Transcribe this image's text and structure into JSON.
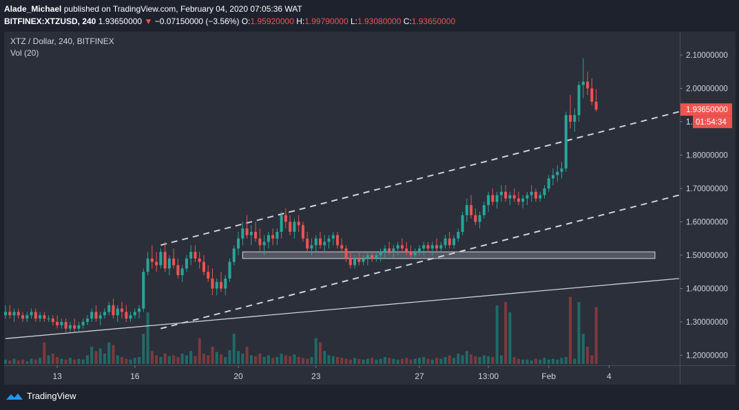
{
  "header": {
    "publisher": "Alade_Michael",
    "published_text": "published on TradingView.com, February 04, 2020 07:05:36 WAT",
    "symbol": "BITFINEX:XTZUSD, 240",
    "last": "1.93650000",
    "change": "−0.07150000 (−3.56%)",
    "o_label": "O:",
    "o": "1.95920000",
    "h_label": "H:",
    "h": "1.99790000",
    "l_label": "L:",
    "l": "1.93080000",
    "c_label": "C:",
    "c": "1.93650000"
  },
  "legend": {
    "title": "XTZ / Dollar, 240, BITFINEX",
    "vol": "Vol (20)"
  },
  "price_tag": {
    "price": "1.93650000",
    "countdown": "01:54:34",
    "partial": "1.",
    "color": "#ef5350"
  },
  "footer": {
    "brand": "TradingView"
  },
  "colors": {
    "up": "#26a69a",
    "down": "#ef5350",
    "vol_up": "#1f6b68",
    "vol_down": "#7e3a3d",
    "trendline": "#d1d4dc",
    "support_zone": "#b2b5be"
  },
  "chart_data": {
    "type": "candlestick",
    "title": "XTZ / Dollar, 240, BITFINEX",
    "y_ticks": [
      "1.20000000",
      "1.30000000",
      "1.40000000",
      "1.50000000",
      "1.60000000",
      "1.70000000",
      "1.80000000",
      "1.90000000",
      "2.00000000",
      "2.10000000"
    ],
    "y_tick_values": [
      1.2,
      1.3,
      1.4,
      1.5,
      1.6,
      1.7,
      1.8,
      1.9,
      2.0,
      2.1
    ],
    "x_ticks": [
      "13",
      "16",
      "20",
      "23",
      "27",
      "13:00",
      "Feb",
      "4"
    ],
    "x_tick_index": [
      12,
      30,
      54,
      72,
      96,
      112,
      126,
      140
    ],
    "ylim": [
      1.17,
      2.17
    ],
    "candles": [
      [
        1.32,
        1.35,
        1.31,
        1.33
      ],
      [
        1.33,
        1.35,
        1.31,
        1.32
      ],
      [
        1.32,
        1.34,
        1.3,
        1.33
      ],
      [
        1.33,
        1.34,
        1.31,
        1.32
      ],
      [
        1.32,
        1.33,
        1.3,
        1.31
      ],
      [
        1.31,
        1.33,
        1.3,
        1.32
      ],
      [
        1.32,
        1.34,
        1.31,
        1.33
      ],
      [
        1.33,
        1.34,
        1.3,
        1.31
      ],
      [
        1.31,
        1.33,
        1.3,
        1.32
      ],
      [
        1.32,
        1.33,
        1.3,
        1.31
      ],
      [
        1.31,
        1.32,
        1.3,
        1.31
      ],
      [
        1.31,
        1.32,
        1.29,
        1.3
      ],
      [
        1.3,
        1.32,
        1.28,
        1.29
      ],
      [
        1.29,
        1.31,
        1.28,
        1.3
      ],
      [
        1.3,
        1.31,
        1.27,
        1.28
      ],
      [
        1.28,
        1.3,
        1.27,
        1.29
      ],
      [
        1.29,
        1.31,
        1.27,
        1.28
      ],
      [
        1.28,
        1.3,
        1.27,
        1.29
      ],
      [
        1.29,
        1.31,
        1.28,
        1.3
      ],
      [
        1.3,
        1.32,
        1.29,
        1.31
      ],
      [
        1.31,
        1.34,
        1.3,
        1.33
      ],
      [
        1.33,
        1.35,
        1.3,
        1.31
      ],
      [
        1.31,
        1.33,
        1.29,
        1.32
      ],
      [
        1.32,
        1.34,
        1.31,
        1.33
      ],
      [
        1.33,
        1.36,
        1.32,
        1.35
      ],
      [
        1.35,
        1.37,
        1.31,
        1.32
      ],
      [
        1.32,
        1.35,
        1.3,
        1.34
      ],
      [
        1.34,
        1.36,
        1.31,
        1.33
      ],
      [
        1.33,
        1.35,
        1.3,
        1.31
      ],
      [
        1.31,
        1.33,
        1.3,
        1.32
      ],
      [
        1.32,
        1.34,
        1.31,
        1.33
      ],
      [
        1.33,
        1.35,
        1.31,
        1.34
      ],
      [
        1.34,
        1.46,
        1.33,
        1.45
      ],
      [
        1.45,
        1.51,
        1.44,
        1.49
      ],
      [
        1.49,
        1.53,
        1.46,
        1.48
      ],
      [
        1.48,
        1.51,
        1.45,
        1.47
      ],
      [
        1.47,
        1.52,
        1.46,
        1.51
      ],
      [
        1.51,
        1.54,
        1.45,
        1.46
      ],
      [
        1.46,
        1.5,
        1.44,
        1.49
      ],
      [
        1.49,
        1.52,
        1.46,
        1.47
      ],
      [
        1.47,
        1.49,
        1.43,
        1.44
      ],
      [
        1.44,
        1.47,
        1.42,
        1.46
      ],
      [
        1.46,
        1.5,
        1.45,
        1.49
      ],
      [
        1.49,
        1.53,
        1.47,
        1.51
      ],
      [
        1.51,
        1.53,
        1.48,
        1.49
      ],
      [
        1.49,
        1.51,
        1.46,
        1.48
      ],
      [
        1.48,
        1.5,
        1.44,
        1.45
      ],
      [
        1.45,
        1.47,
        1.42,
        1.43
      ],
      [
        1.43,
        1.46,
        1.38,
        1.4
      ],
      [
        1.4,
        1.43,
        1.38,
        1.42
      ],
      [
        1.42,
        1.45,
        1.39,
        1.4
      ],
      [
        1.4,
        1.44,
        1.38,
        1.43
      ],
      [
        1.43,
        1.49,
        1.42,
        1.48
      ],
      [
        1.48,
        1.53,
        1.47,
        1.52
      ],
      [
        1.52,
        1.57,
        1.5,
        1.55
      ],
      [
        1.55,
        1.6,
        1.53,
        1.58
      ],
      [
        1.58,
        1.62,
        1.55,
        1.56
      ],
      [
        1.56,
        1.59,
        1.53,
        1.57
      ],
      [
        1.57,
        1.6,
        1.54,
        1.55
      ],
      [
        1.55,
        1.58,
        1.51,
        1.53
      ],
      [
        1.53,
        1.56,
        1.5,
        1.54
      ],
      [
        1.54,
        1.57,
        1.52,
        1.56
      ],
      [
        1.56,
        1.58,
        1.53,
        1.55
      ],
      [
        1.55,
        1.58,
        1.53,
        1.57
      ],
      [
        1.57,
        1.63,
        1.55,
        1.62
      ],
      [
        1.62,
        1.64,
        1.58,
        1.6
      ],
      [
        1.6,
        1.62,
        1.56,
        1.57
      ],
      [
        1.57,
        1.61,
        1.55,
        1.6
      ],
      [
        1.6,
        1.62,
        1.57,
        1.59
      ],
      [
        1.59,
        1.6,
        1.54,
        1.55
      ],
      [
        1.55,
        1.57,
        1.51,
        1.52
      ],
      [
        1.52,
        1.55,
        1.5,
        1.53
      ],
      [
        1.53,
        1.56,
        1.51,
        1.55
      ],
      [
        1.55,
        1.57,
        1.52,
        1.53
      ],
      [
        1.53,
        1.56,
        1.51,
        1.54
      ],
      [
        1.54,
        1.56,
        1.52,
        1.55
      ],
      [
        1.55,
        1.57,
        1.53,
        1.56
      ],
      [
        1.56,
        1.57,
        1.52,
        1.53
      ],
      [
        1.53,
        1.55,
        1.51,
        1.52
      ],
      [
        1.52,
        1.53,
        1.48,
        1.49
      ],
      [
        1.49,
        1.51,
        1.46,
        1.47
      ],
      [
        1.47,
        1.5,
        1.46,
        1.49
      ],
      [
        1.49,
        1.51,
        1.47,
        1.48
      ],
      [
        1.48,
        1.5,
        1.47,
        1.49
      ],
      [
        1.49,
        1.51,
        1.47,
        1.5
      ],
      [
        1.5,
        1.51,
        1.48,
        1.49
      ],
      [
        1.49,
        1.51,
        1.48,
        1.5
      ],
      [
        1.5,
        1.52,
        1.48,
        1.51
      ],
      [
        1.51,
        1.53,
        1.49,
        1.52
      ],
      [
        1.52,
        1.54,
        1.5,
        1.51
      ],
      [
        1.51,
        1.53,
        1.49,
        1.52
      ],
      [
        1.52,
        1.54,
        1.5,
        1.53
      ],
      [
        1.53,
        1.55,
        1.51,
        1.52
      ],
      [
        1.52,
        1.54,
        1.5,
        1.51
      ],
      [
        1.51,
        1.53,
        1.49,
        1.5
      ],
      [
        1.5,
        1.52,
        1.49,
        1.51
      ],
      [
        1.51,
        1.53,
        1.5,
        1.52
      ],
      [
        1.52,
        1.54,
        1.5,
        1.53
      ],
      [
        1.53,
        1.54,
        1.51,
        1.52
      ],
      [
        1.52,
        1.54,
        1.5,
        1.53
      ],
      [
        1.53,
        1.55,
        1.51,
        1.52
      ],
      [
        1.52,
        1.54,
        1.51,
        1.53
      ],
      [
        1.53,
        1.56,
        1.52,
        1.55
      ],
      [
        1.55,
        1.57,
        1.52,
        1.53
      ],
      [
        1.53,
        1.56,
        1.52,
        1.55
      ],
      [
        1.55,
        1.58,
        1.54,
        1.57
      ],
      [
        1.57,
        1.63,
        1.56,
        1.62
      ],
      [
        1.62,
        1.67,
        1.6,
        1.65
      ],
      [
        1.65,
        1.68,
        1.61,
        1.62
      ],
      [
        1.62,
        1.64,
        1.59,
        1.6
      ],
      [
        1.6,
        1.63,
        1.58,
        1.62
      ],
      [
        1.62,
        1.66,
        1.61,
        1.65
      ],
      [
        1.65,
        1.69,
        1.63,
        1.68
      ],
      [
        1.68,
        1.7,
        1.65,
        1.66
      ],
      [
        1.66,
        1.69,
        1.64,
        1.68
      ],
      [
        1.68,
        1.71,
        1.66,
        1.69
      ],
      [
        1.69,
        1.71,
        1.66,
        1.67
      ],
      [
        1.67,
        1.69,
        1.65,
        1.68
      ],
      [
        1.68,
        1.7,
        1.66,
        1.67
      ],
      [
        1.67,
        1.69,
        1.65,
        1.66
      ],
      [
        1.66,
        1.68,
        1.64,
        1.67
      ],
      [
        1.67,
        1.69,
        1.65,
        1.68
      ],
      [
        1.68,
        1.71,
        1.66,
        1.69
      ],
      [
        1.69,
        1.7,
        1.66,
        1.67
      ],
      [
        1.67,
        1.69,
        1.66,
        1.68
      ],
      [
        1.68,
        1.71,
        1.67,
        1.7
      ],
      [
        1.7,
        1.74,
        1.69,
        1.73
      ],
      [
        1.73,
        1.76,
        1.71,
        1.74
      ],
      [
        1.74,
        1.77,
        1.72,
        1.75
      ],
      [
        1.75,
        1.78,
        1.73,
        1.76
      ],
      [
        1.76,
        1.93,
        1.75,
        1.92
      ],
      [
        1.92,
        1.98,
        1.88,
        1.9
      ],
      [
        1.9,
        1.94,
        1.87,
        1.92
      ],
      [
        1.92,
        2.02,
        1.9,
        2.01
      ],
      [
        2.01,
        2.09,
        1.97,
        2.02
      ],
      [
        2.02,
        2.05,
        1.98,
        2.0
      ],
      [
        2.0,
        2.03,
        1.95,
        1.96
      ],
      [
        1.96,
        1.9979,
        1.9308,
        1.9365
      ]
    ],
    "volume_relative": [
      0.05,
      0.04,
      0.06,
      0.04,
      0.05,
      0.03,
      0.06,
      0.05,
      0.07,
      0.25,
      0.1,
      0.12,
      0.08,
      0.06,
      0.05,
      0.07,
      0.05,
      0.06,
      0.05,
      0.1,
      0.2,
      0.15,
      0.18,
      0.12,
      0.25,
      0.22,
      0.1,
      0.08,
      0.06,
      0.05,
      0.07,
      0.08,
      0.35,
      0.6,
      0.15,
      0.1,
      0.08,
      0.12,
      0.09,
      0.1,
      0.08,
      0.12,
      0.1,
      0.15,
      0.09,
      0.3,
      0.12,
      0.1,
      0.2,
      0.14,
      0.11,
      0.08,
      0.16,
      0.35,
      0.15,
      0.12,
      0.2,
      0.1,
      0.09,
      0.12,
      0.08,
      0.1,
      0.07,
      0.08,
      0.12,
      0.1,
      0.09,
      0.11,
      0.08,
      0.07,
      0.06,
      0.08,
      0.3,
      0.25,
      0.15,
      0.1,
      0.09,
      0.08,
      0.07,
      0.06,
      0.05,
      0.07,
      0.06,
      0.05,
      0.06,
      0.07,
      0.05,
      0.06,
      0.08,
      0.07,
      0.06,
      0.05,
      0.06,
      0.07,
      0.05,
      0.06,
      0.07,
      0.08,
      0.06,
      0.05,
      0.07,
      0.06,
      0.08,
      0.1,
      0.07,
      0.12,
      0.1,
      0.15,
      0.11,
      0.09,
      0.08,
      0.1,
      0.09,
      0.08,
      0.68,
      0.1,
      0.72,
      0.6,
      0.08,
      0.06,
      0.05,
      0.05,
      0.04,
      0.06,
      0.05,
      0.07,
      0.05,
      0.06,
      0.05,
      0.07,
      0.08,
      0.78,
      0.06,
      0.72,
      0.35,
      0.2,
      0.1,
      0.66,
      0.8,
      0.12,
      0.06,
      0.04
    ],
    "channel_upper": [
      [
        1.53,
        36
      ],
      [
        1.93,
        190
      ]
    ],
    "channel_lower": [
      [
        1.28,
        36
      ],
      [
        1.68,
        190
      ]
    ],
    "support_line": [
      [
        1.25,
        0
      ],
      [
        1.43,
        190
      ]
    ],
    "support_zone": [
      1.49,
      1.51
    ]
  }
}
